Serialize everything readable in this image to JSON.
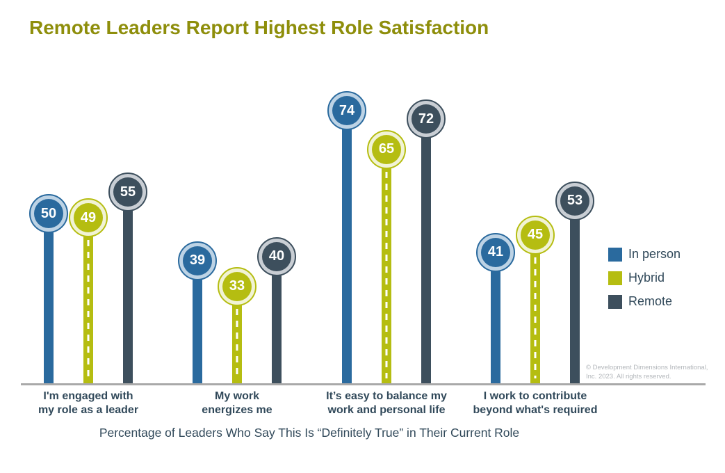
{
  "title": {
    "text": "Remote Leaders Report Highest Role Satisfaction",
    "color": "#8E8E0B"
  },
  "caption": "Percentage of Leaders Who Say This Is “Definitely True” in Their Current Role",
  "copyright": {
    "line1": "© Development Dimensions International,",
    "line2": "Inc. 2023. All rights reserved."
  },
  "chart_data": {
    "type": "bar",
    "subtype": "lollipop",
    "title": "Remote Leaders Report Highest Role Satisfaction",
    "xlabel": "",
    "ylabel": "Percentage of Leaders Who Say This Is “Definitely True” in Their Current Role",
    "unit": "percent",
    "value_range": [
      0,
      100
    ],
    "grid": false,
    "legend_position": "right",
    "baseline_color": "#A9A9A9",
    "label_color": "#31495A",
    "categories": [
      [
        "I'm engaged with",
        "my role as a leader"
      ],
      [
        "My work",
        "energizes me"
      ],
      [
        "It’s easy to balance my",
        "work and personal life"
      ],
      [
        "I work to contribute",
        "beyond what's required"
      ]
    ],
    "series": [
      {
        "name": "In person",
        "color": "#2A6A9E",
        "halo_color": "#BDD3E5",
        "stem_style": "solid",
        "values": [
          50,
          39,
          74,
          41
        ]
      },
      {
        "name": "Hybrid",
        "color": "#B5BD11",
        "halo_color": "#F1F3D5",
        "stem_style": "dashed-centerline",
        "values": [
          49,
          33,
          65,
          45
        ]
      },
      {
        "name": "Remote",
        "color": "#3D4F5D",
        "halo_color": "#C9CED4",
        "stem_style": "solid",
        "values": [
          55,
          40,
          72,
          53
        ]
      }
    ]
  }
}
